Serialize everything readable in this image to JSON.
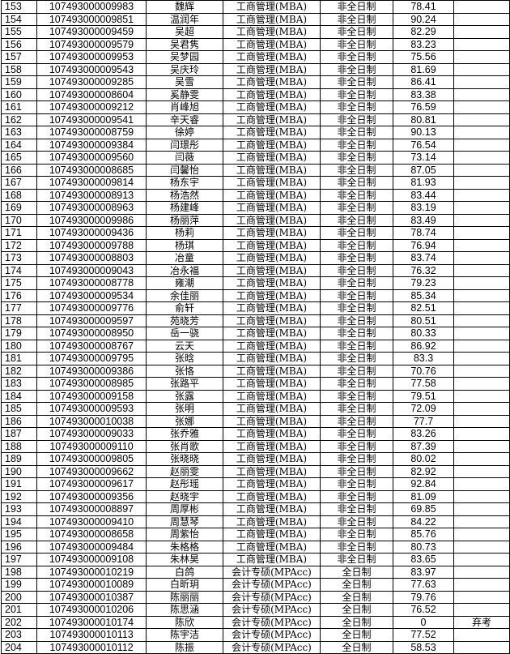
{
  "rows": [
    [
      "153",
      "107493000009983",
      "魏辉",
      "工商管理(MBA)",
      "非全日制",
      "78.41",
      ""
    ],
    [
      "154",
      "107493000009851",
      "温润年",
      "工商管理(MBA)",
      "非全日制",
      "90.24",
      ""
    ],
    [
      "155",
      "107493000009459",
      "吴超",
      "工商管理(MBA)",
      "非全日制",
      "82.29",
      ""
    ],
    [
      "156",
      "107493000009579",
      "吴君隽",
      "工商管理(MBA)",
      "非全日制",
      "83.23",
      ""
    ],
    [
      "157",
      "107493000009953",
      "吴梦园",
      "工商管理(MBA)",
      "非全日制",
      "75.56",
      ""
    ],
    [
      "158",
      "107493000009543",
      "吴庆玲",
      "工商管理(MBA)",
      "非全日制",
      "81.69",
      ""
    ],
    [
      "159",
      "107493000009285",
      "吴雪",
      "工商管理(MBA)",
      "非全日制",
      "86.41",
      ""
    ],
    [
      "160",
      "107493000008604",
      "奚静雯",
      "工商管理(MBA)",
      "非全日制",
      "83.38",
      ""
    ],
    [
      "161",
      "107493000009212",
      "肖峰旭",
      "工商管理(MBA)",
      "非全日制",
      "76.59",
      ""
    ],
    [
      "162",
      "107493000009541",
      "辛天睿",
      "工商管理(MBA)",
      "非全日制",
      "80.81",
      ""
    ],
    [
      "163",
      "107493000008759",
      "徐婷",
      "工商管理(MBA)",
      "非全日制",
      "90.13",
      ""
    ],
    [
      "164",
      "107493000009384",
      "闫璟彤",
      "工商管理(MBA)",
      "非全日制",
      "76.54",
      ""
    ],
    [
      "165",
      "107493000009560",
      "闫薇",
      "工商管理(MBA)",
      "非全日制",
      "73.14",
      ""
    ],
    [
      "166",
      "107493000008685",
      "闫馨怡",
      "工商管理(MBA)",
      "非全日制",
      "87.05",
      ""
    ],
    [
      "167",
      "107493000009814",
      "杨东宇",
      "工商管理(MBA)",
      "非全日制",
      "81.93",
      ""
    ],
    [
      "168",
      "107493000008913",
      "杨浩然",
      "工商管理(MBA)",
      "非全日制",
      "83.44",
      ""
    ],
    [
      "169",
      "107493000008963",
      "杨建峰",
      "工商管理(MBA)",
      "非全日制",
      "83.19",
      ""
    ],
    [
      "170",
      "107493000009986",
      "杨丽萍",
      "工商管理(MBA)",
      "非全日制",
      "83.49",
      ""
    ],
    [
      "171",
      "107493000009436",
      "杨莉",
      "工商管理(MBA)",
      "非全日制",
      "78.74",
      ""
    ],
    [
      "172",
      "107493000009788",
      "杨琪",
      "工商管理(MBA)",
      "非全日制",
      "76.94",
      ""
    ],
    [
      "173",
      "107493000008803",
      "冶童",
      "工商管理(MBA)",
      "非全日制",
      "83.74",
      ""
    ],
    [
      "174",
      "107493000009043",
      "冶永福",
      "工商管理(MBA)",
      "非全日制",
      "76.32",
      ""
    ],
    [
      "175",
      "107493000008778",
      "雍潮",
      "工商管理(MBA)",
      "非全日制",
      "79.23",
      ""
    ],
    [
      "176",
      "107493000009534",
      "余佳丽",
      "工商管理(MBA)",
      "非全日制",
      "85.34",
      ""
    ],
    [
      "177",
      "107493000009776",
      "俞轩",
      "工商管理(MBA)",
      "非全日制",
      "82.51",
      ""
    ],
    [
      "178",
      "107493000009597",
      "苑晓芳",
      "工商管理(MBA)",
      "非全日制",
      "80.51",
      ""
    ],
    [
      "179",
      "107493000008950",
      "岳一骁",
      "工商管理(MBA)",
      "非全日制",
      "80.33",
      ""
    ],
    [
      "180",
      "107493000008767",
      "云天",
      "工商管理(MBA)",
      "非全日制",
      "86.92",
      ""
    ],
    [
      "181",
      "107493000009795",
      "张晗",
      "工商管理(MBA)",
      "非全日制",
      "83.3",
      ""
    ],
    [
      "182",
      "107493000009386",
      "张恪",
      "工商管理(MBA)",
      "非全日制",
      "70.76",
      ""
    ],
    [
      "183",
      "107493000008985",
      "张路平",
      "工商管理(MBA)",
      "非全日制",
      "77.58",
      ""
    ],
    [
      "184",
      "107493000009158",
      "张露",
      "工商管理(MBA)",
      "非全日制",
      "79.51",
      ""
    ],
    [
      "185",
      "107493000009593",
      "张明",
      "工商管理(MBA)",
      "非全日制",
      "72.09",
      ""
    ],
    [
      "186",
      "107493000010038",
      "张娜",
      "工商管理(MBA)",
      "非全日制",
      "77.7",
      ""
    ],
    [
      "187",
      "107493000009033",
      "张乔雅",
      "工商管理(MBA)",
      "非全日制",
      "83.26",
      ""
    ],
    [
      "188",
      "107493000009110",
      "张肖歌",
      "工商管理(MBA)",
      "非全日制",
      "87.39",
      ""
    ],
    [
      "189",
      "107493000009805",
      "张晓晓",
      "工商管理(MBA)",
      "非全日制",
      "80.02",
      ""
    ],
    [
      "190",
      "107493000009662",
      "赵丽雯",
      "工商管理(MBA)",
      "非全日制",
      "82.92",
      ""
    ],
    [
      "191",
      "107493000009617",
      "赵彤瑶",
      "工商管理(MBA)",
      "非全日制",
      "92.84",
      ""
    ],
    [
      "192",
      "107493000009356",
      "赵晓宇",
      "工商管理(MBA)",
      "非全日制",
      "81.09",
      ""
    ],
    [
      "193",
      "107493000008897",
      "周厚彬",
      "工商管理(MBA)",
      "非全日制",
      "69.85",
      ""
    ],
    [
      "194",
      "107493000009410",
      "周慧琴",
      "工商管理(MBA)",
      "非全日制",
      "84.22",
      ""
    ],
    [
      "195",
      "107493000008658",
      "周紫怡",
      "工商管理(MBA)",
      "非全日制",
      "85.76",
      ""
    ],
    [
      "196",
      "107493000009484",
      "朱格格",
      "工商管理(MBA)",
      "非全日制",
      "80.73",
      ""
    ],
    [
      "197",
      "107493000009108",
      "朱林昊",
      "工商管理(MBA)",
      "非全日制",
      "83.65",
      ""
    ],
    [
      "198",
      "107493000010219",
      "白鸽",
      "会计专硕(MPAcc)",
      "全日制",
      "83.97",
      ""
    ],
    [
      "199",
      "107493000010089",
      "白昕玥",
      "会计专硕(MPAcc)",
      "全日制",
      "77.63",
      ""
    ],
    [
      "200",
      "107493000010387",
      "陈丽丽",
      "会计专硕(MPAcc)",
      "全日制",
      "79.76",
      ""
    ],
    [
      "201",
      "107493000010206",
      "陈思涵",
      "会计专硕(MPAcc)",
      "全日制",
      "76.52",
      ""
    ],
    [
      "202",
      "107493000010174",
      "陈欣",
      "会计专硕(MPAcc)",
      "全日制",
      "0",
      "弃考"
    ],
    [
      "203",
      "107493000010113",
      "陈宇洁",
      "会计专硕(MPAcc)",
      "全日制",
      "77.52",
      ""
    ],
    [
      "204",
      "107493000010112",
      "陈振",
      "会计专硕(MPAcc)",
      "全日制",
      "58.53",
      ""
    ]
  ]
}
